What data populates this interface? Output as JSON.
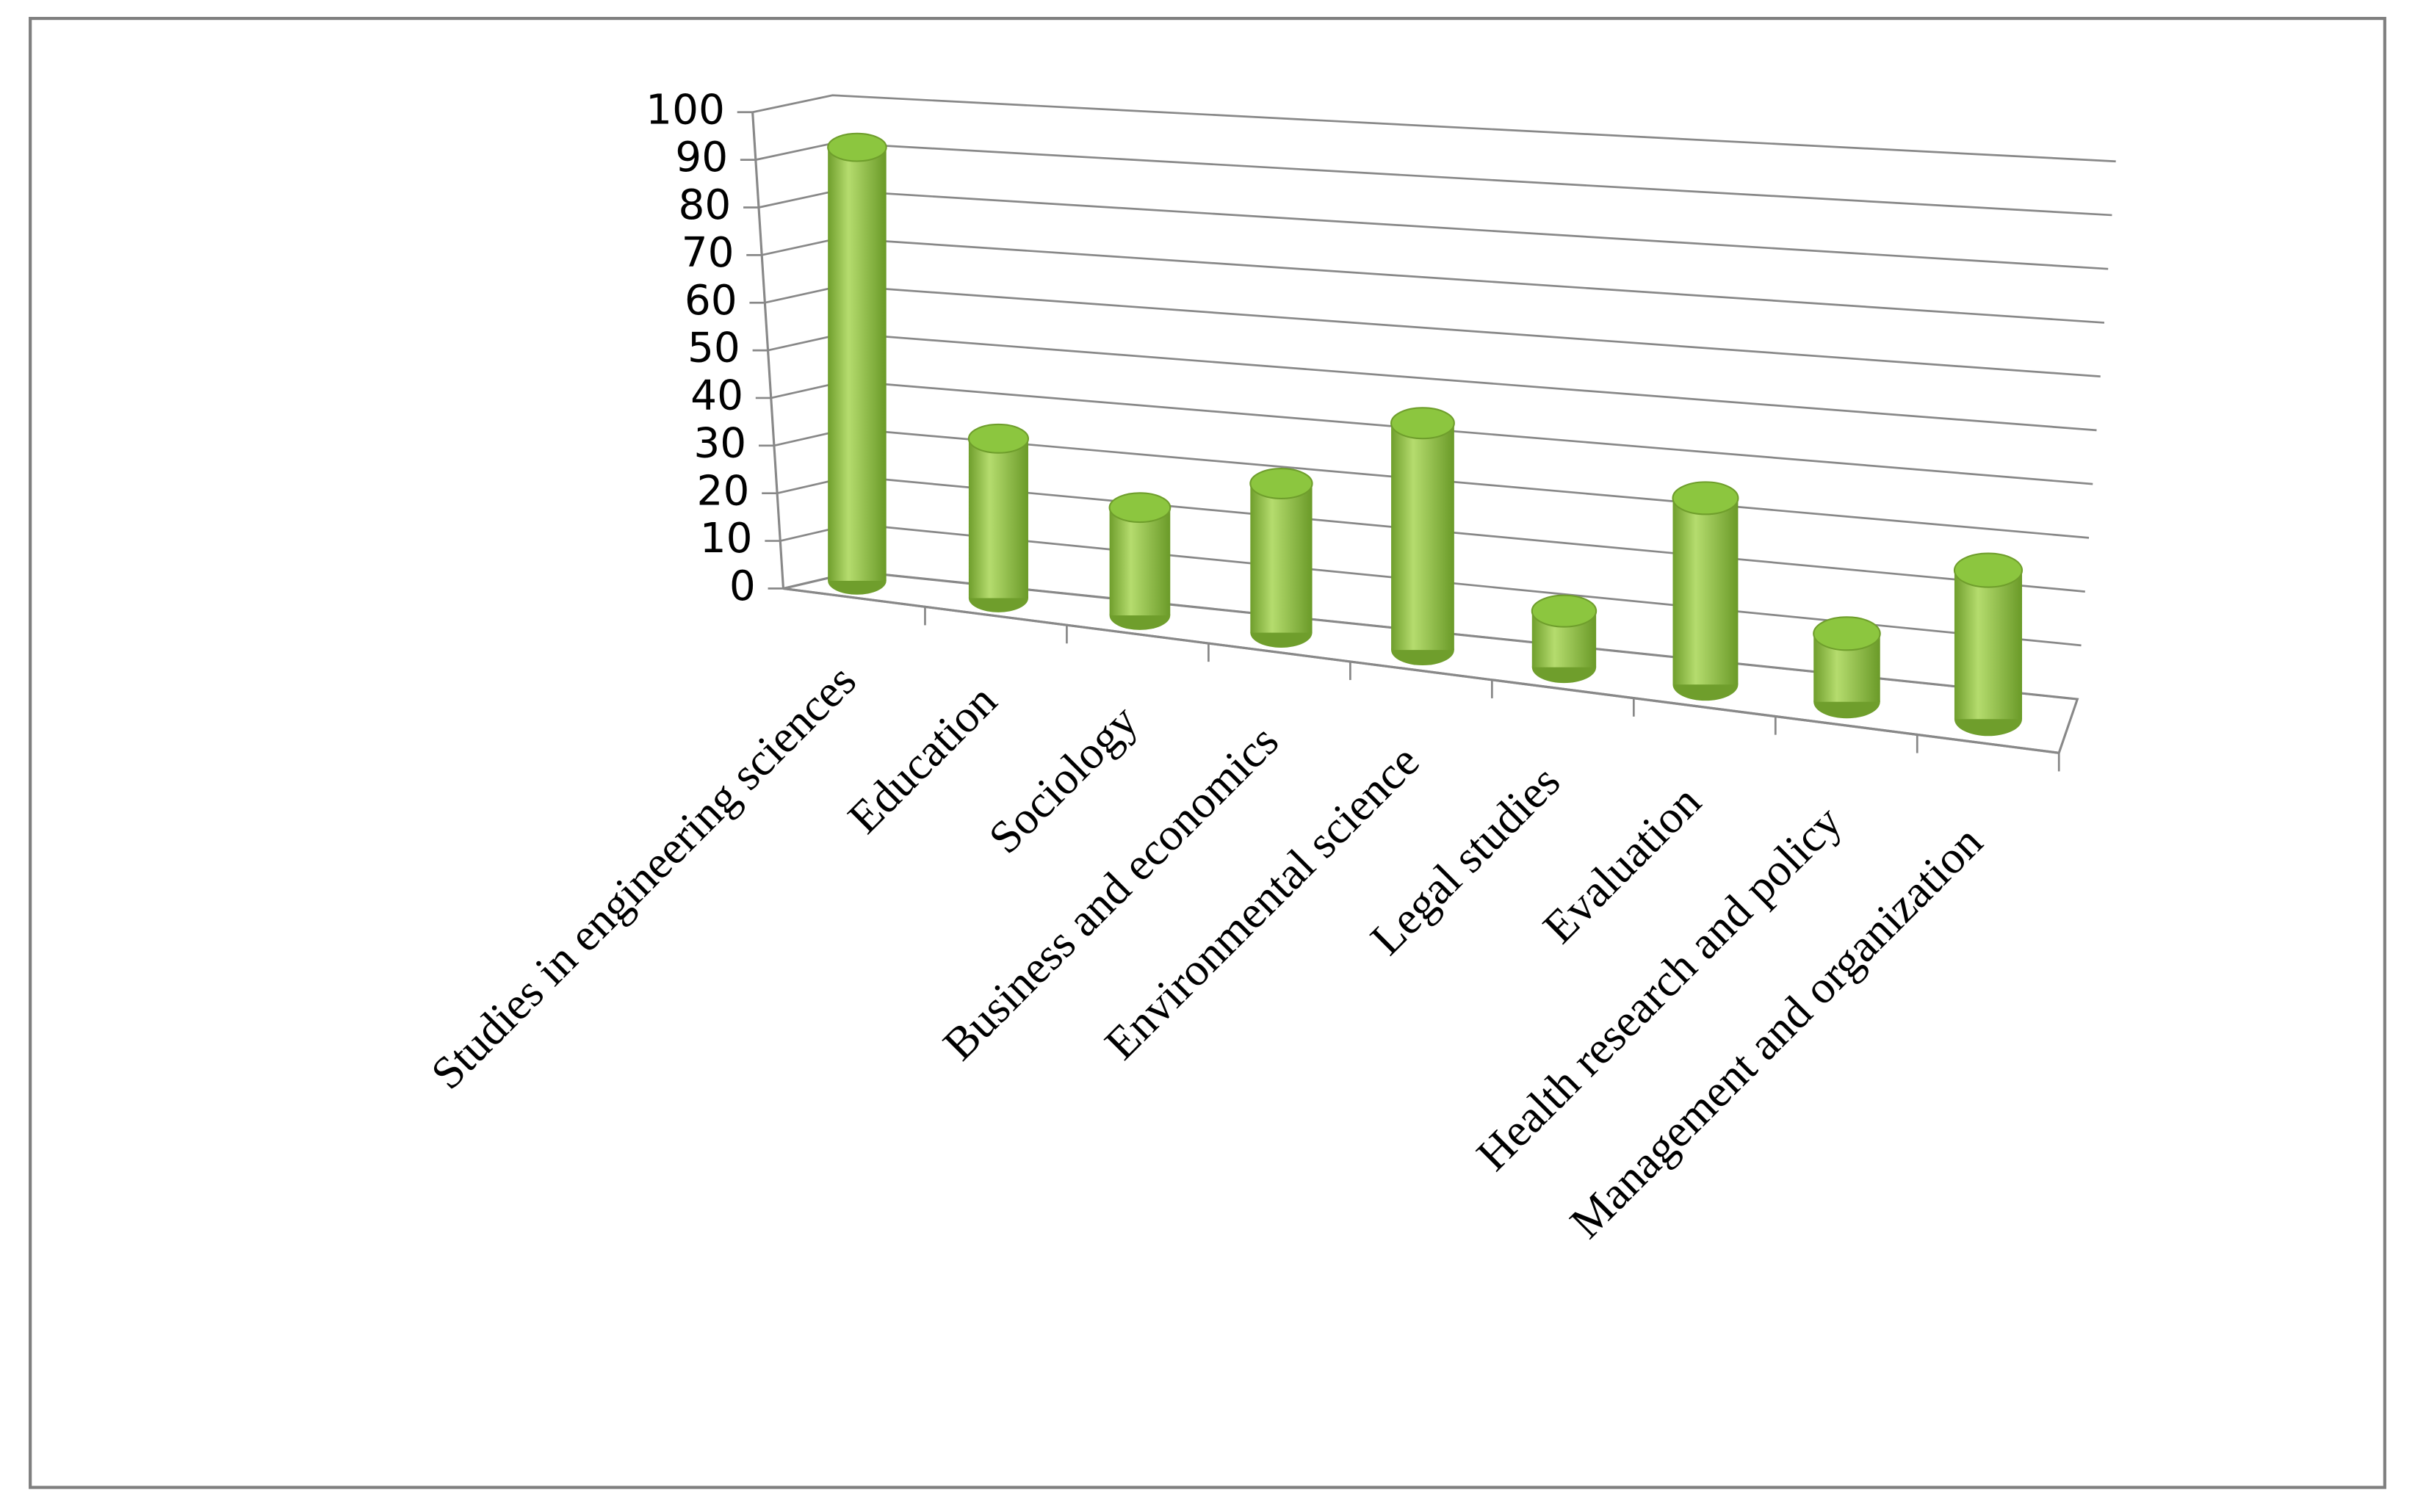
{
  "chart_data": {
    "type": "bar",
    "categories": [
      "Studies in engineering sciences",
      "Education",
      "Sociology",
      "Business and economics",
      "Environmental science",
      "Legal studies",
      "Evaluation",
      "Health research and policy",
      "Management and organization"
    ],
    "values": [
      91,
      33,
      22,
      30,
      45,
      11,
      36,
      13,
      28
    ],
    "color": "#8cc63f",
    "ylim": [
      0,
      100
    ],
    "yticks": [
      0,
      10,
      20,
      30,
      40,
      50,
      60,
      70,
      80,
      90,
      100
    ],
    "grid": true
  }
}
